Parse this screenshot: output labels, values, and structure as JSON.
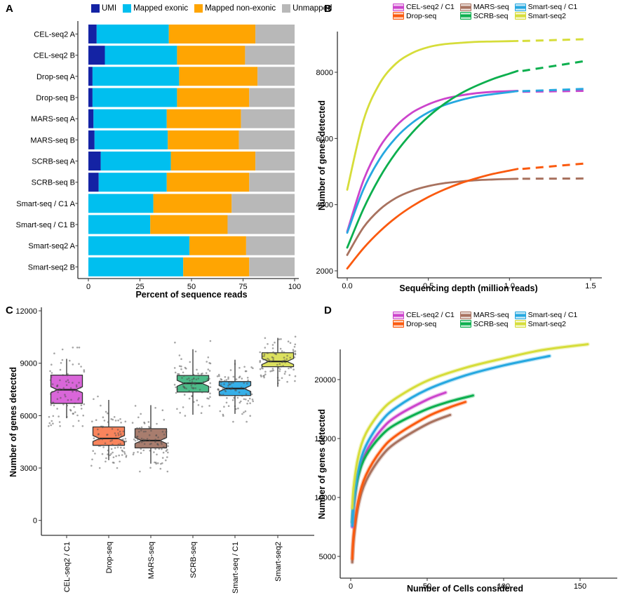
{
  "figure": {
    "background": "#ffffff",
    "panel_labels": [
      "A",
      "B",
      "C",
      "D"
    ],
    "methods": [
      "CEL-seq2 / C1",
      "Drop-seq",
      "MARS-seq",
      "SCRB-seq",
      "Smart-seq / C1",
      "Smart-seq2"
    ],
    "method_colors": {
      "CEL-seq2 / C1": "#CC44CC",
      "Drop-seq": "#FA5A0F",
      "MARS-seq": "#A8725F",
      "SCRB-seq": "#0CAF4E",
      "Smart-seq / C1": "#26A8E0",
      "Smart-seq2": "#D6DD3A"
    }
  },
  "chart_data": [
    {
      "panel": "A",
      "type": "bar",
      "orientation": "horizontal",
      "stacked": true,
      "xlabel": "Percent of sequence reads",
      "ylabel": "",
      "xlim": [
        0,
        100
      ],
      "xticks": [
        0,
        25,
        50,
        75,
        100
      ],
      "legend_position": "top",
      "categories": [
        "CEL-seq2 A",
        "CEL-seq2 B",
        "Drop-seq A",
        "Drop-seq B",
        "MARS-seq A",
        "MARS-seq B",
        "SCRB-seq A",
        "SCRB-seq B",
        "Smart-seq / C1 A",
        "Smart-seq / C1 B",
        "Smart-seq2 A",
        "Smart-seq2 B"
      ],
      "series": [
        {
          "name": "UMI",
          "color": "#1423A4",
          "values": [
            4,
            8,
            2,
            2,
            2.5,
            3,
            6,
            5,
            0,
            0,
            0,
            0
          ]
        },
        {
          "name": "Mapped exonic",
          "color": "#00BFEF",
          "values": [
            35,
            35,
            42,
            41,
            35.5,
            35.5,
            34,
            33,
            31.5,
            30,
            49,
            46
          ]
        },
        {
          "name": "Mapped non-exonic",
          "color": "#FFA502",
          "values": [
            42,
            33,
            38,
            35,
            36,
            34.5,
            41,
            40,
            38,
            37.5,
            27.5,
            32
          ]
        },
        {
          "name": "Unmapped",
          "color": "#B8B8B8",
          "values": [
            19,
            24,
            18,
            22,
            26,
            27,
            19,
            22,
            30.5,
            32.5,
            23.5,
            22
          ]
        }
      ]
    },
    {
      "panel": "B",
      "type": "line",
      "xlabel": "Sequencing depth (million reads)",
      "ylabel": "Number of genes detected",
      "xticks": [
        0.0,
        0.5,
        1.0,
        1.5
      ],
      "xtick_labels": [
        "0.0",
        "0.5",
        "1.0",
        "1.5"
      ],
      "yticks": [
        2000,
        4000,
        6000,
        8000
      ],
      "xlim": [
        0,
        1.55
      ],
      "ylim": [
        1900,
        9300
      ],
      "legend_position": "top",
      "legend_order": [
        "CEL-seq2 / C1",
        "Drop-seq",
        "MARS-seq",
        "SCRB-seq",
        "Smart-seq / C1",
        "Smart-seq2"
      ],
      "x_solid": [
        0,
        0.1,
        0.2,
        0.3,
        0.4,
        0.5,
        0.6,
        0.7,
        0.8,
        0.9,
        1.0
      ],
      "dash_start_x": 1.05,
      "dash_end_x": 1.48,
      "series": [
        {
          "name": "Smart-seq2",
          "color": "#D6DD3A",
          "values": [
            4450,
            6540,
            7660,
            8260,
            8580,
            8760,
            8850,
            8890,
            8920,
            8930,
            8940
          ],
          "value_at_1_5": 9000,
          "dash_offset": 0
        },
        {
          "name": "CEL-seq2 / C1",
          "color": "#CC44CC",
          "values": [
            3190,
            4730,
            5740,
            6370,
            6780,
            7030,
            7200,
            7300,
            7370,
            7410,
            7430
          ],
          "value_at_1_5": 7470,
          "dash_offset": 1.4
        },
        {
          "name": "Smart-seq / C1",
          "color": "#26A8E0",
          "values": [
            3150,
            4460,
            5380,
            6020,
            6470,
            6790,
            7010,
            7160,
            7270,
            7340,
            7400
          ],
          "value_at_1_5": 7500,
          "dash_offset": 0
        },
        {
          "name": "MARS-seq",
          "color": "#A8725F",
          "values": [
            2480,
            3310,
            3850,
            4200,
            4420,
            4560,
            4650,
            4700,
            4740,
            4760,
            4775
          ],
          "value_at_1_5": 4790,
          "dash_offset": 0
        },
        {
          "name": "Drop-seq",
          "color": "#FA5A0F",
          "values": [
            2070,
            2680,
            3190,
            3610,
            3950,
            4230,
            4460,
            4650,
            4800,
            4930,
            5030
          ],
          "value_at_1_5": 5250,
          "dash_offset": 0
        },
        {
          "name": "SCRB-seq",
          "color": "#0CAF4E",
          "values": [
            2700,
            3870,
            4820,
            5570,
            6170,
            6660,
            7050,
            7360,
            7600,
            7800,
            7960
          ],
          "value_at_1_5": 8350,
          "dash_offset": 0
        }
      ]
    },
    {
      "panel": "C",
      "type": "boxplot",
      "notched": true,
      "xlabel": "",
      "ylabel": "Number of genes detected",
      "yticks": [
        0,
        3000,
        6000,
        9000,
        12000
      ],
      "ylim": [
        0,
        12000
      ],
      "categories": [
        "CEL-seq2 / C1",
        "Drop-seq",
        "MARS-seq",
        "SCRB-seq",
        "Smart-seq / C1",
        "Smart-seq2"
      ],
      "stats": [
        {
          "name": "CEL-seq2 / C1",
          "box_fill": "#D966D9",
          "whisker_low": 5850,
          "q1": 6700,
          "median": 7480,
          "q3": 8320,
          "whisker_high": 9250
        },
        {
          "name": "Drop-seq",
          "box_fill": "#F9845C",
          "whisker_low": 3450,
          "q1": 4300,
          "median": 4690,
          "q3": 5350,
          "whisker_high": 6900
        },
        {
          "name": "MARS-seq",
          "box_fill": "#A87D6E",
          "whisker_low": 3250,
          "q1": 4150,
          "median": 4570,
          "q3": 5250,
          "whisker_high": 6600
        },
        {
          "name": "SCRB-seq",
          "box_fill": "#4CBB88",
          "whisker_low": 6050,
          "q1": 7350,
          "median": 7850,
          "q3": 8300,
          "whisker_high": 9800
        },
        {
          "name": "Smart-seq / C1",
          "box_fill": "#36AFE8",
          "whisker_low": 6100,
          "q1": 7150,
          "median": 7550,
          "q3": 7950,
          "whisker_high": 9200
        },
        {
          "name": "Smart-seq2",
          "box_fill": "#DCE15F",
          "whisker_low": 7650,
          "q1": 8800,
          "median": 9100,
          "q3": 9600,
          "whisker_high": 10450
        }
      ],
      "jitter": {
        "points_per_group": 88,
        "point_color": "#4d4d4d",
        "point_opacity": 0.5
      }
    },
    {
      "panel": "D",
      "type": "line",
      "xlabel": "Number of Cells considered",
      "ylabel": "Number of genes detected",
      "xticks": [
        0,
        50,
        100,
        150
      ],
      "yticks": [
        5000,
        10000,
        15000,
        20000
      ],
      "xlim": [
        0,
        165
      ],
      "ylim": [
        4000,
        23500
      ],
      "legend_position": "top",
      "legend_order": [
        "CEL-seq2 / C1",
        "Drop-seq",
        "MARS-seq",
        "SCRB-seq",
        "Smart-seq / C1",
        "Smart-seq2"
      ],
      "series": [
        {
          "name": "MARS-seq",
          "color": "#A8725F",
          "x": [
            1,
            2,
            5,
            10,
            20,
            30,
            50,
            65
          ],
          "values": [
            4500,
            6580,
            9320,
            11400,
            13470,
            14690,
            16220,
            17000
          ]
        },
        {
          "name": "Drop-seq",
          "color": "#FA5A0F",
          "x": [
            1,
            2,
            5,
            10,
            20,
            30,
            50,
            65,
            75
          ],
          "values": [
            4800,
            6940,
            9760,
            11900,
            14030,
            15280,
            16850,
            17660,
            18100
          ]
        },
        {
          "name": "CEL-seq2 / C1",
          "color": "#CC44CC",
          "x": [
            1,
            2,
            5,
            10,
            20,
            30,
            50,
            62
          ],
          "values": [
            7500,
            9400,
            11950,
            13850,
            15750,
            16900,
            18300,
            18900
          ]
        },
        {
          "name": "SCRB-seq",
          "color": "#0CAF4E",
          "x": [
            1,
            2,
            5,
            10,
            20,
            30,
            50,
            65,
            80
          ],
          "values": [
            7900,
            9600,
            11850,
            13550,
            15250,
            16250,
            17500,
            18150,
            18650
          ]
        },
        {
          "name": "Smart-seq / C1",
          "color": "#26A8E0",
          "x": [
            1,
            2,
            5,
            10,
            20,
            30,
            50,
            75,
            100,
            130
          ],
          "values": [
            7600,
            9650,
            12350,
            14400,
            16450,
            17650,
            19150,
            20350,
            21200,
            22000
          ]
        },
        {
          "name": "Smart-seq2",
          "color": "#D6DD3A",
          "x": [
            1,
            2,
            5,
            10,
            20,
            30,
            50,
            75,
            100,
            125,
            155
          ],
          "values": [
            9100,
            11000,
            13500,
            15450,
            17350,
            18450,
            19900,
            21000,
            21800,
            22500,
            23000
          ]
        }
      ]
    }
  ]
}
